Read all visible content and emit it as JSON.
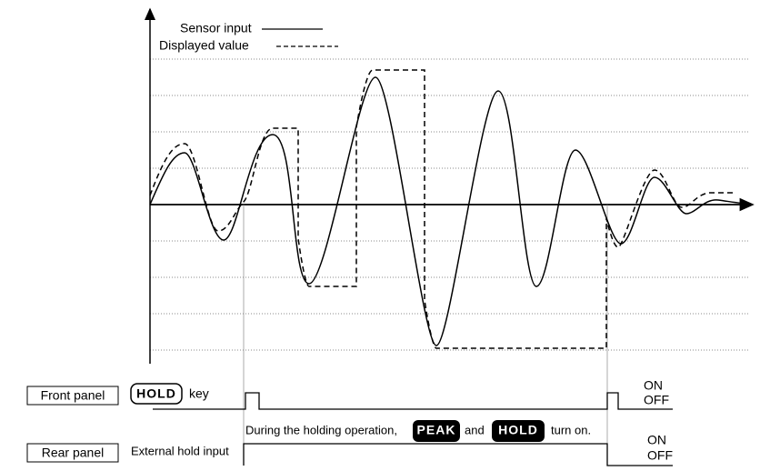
{
  "legend": {
    "sensor": "Sensor input",
    "displayed": "Displayed value"
  },
  "front": {
    "label": "Front panel",
    "key_name": "HOLD",
    "key_text": "key",
    "on": "ON",
    "off": "OFF"
  },
  "note": {
    "before": "During the holding operation,",
    "peak": "PEAK",
    "and": "and",
    "hold": "HOLD",
    "after": "turn on."
  },
  "rear": {
    "label": "Rear panel",
    "input": "External hold input",
    "on": "ON",
    "off": "OFF"
  }
}
